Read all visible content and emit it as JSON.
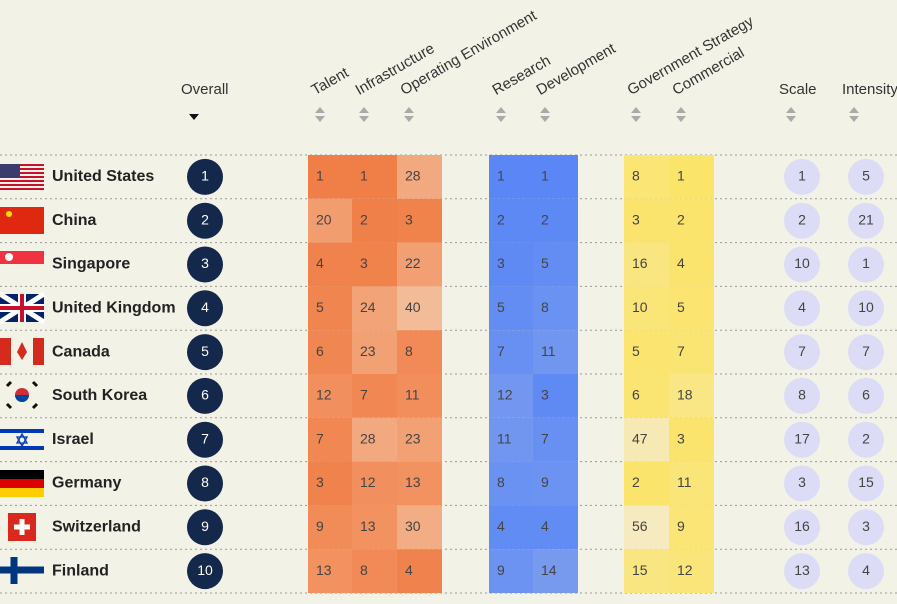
{
  "header": {
    "overall": "Overall",
    "talent": "Talent",
    "infrastructure": "Infrastructure",
    "operating_environment": "Operating Environment",
    "research": "Research",
    "development": "Development",
    "government_strategy": "Government Strategy",
    "commercial": "Commercial",
    "scale": "Scale",
    "intensity": "Intensity"
  },
  "rows": [
    {
      "country": "United States",
      "overall": 1,
      "talent": 1,
      "infrastructure": 1,
      "operating_environment": 28,
      "research": 1,
      "development": 1,
      "government_strategy": 8,
      "commercial": 1,
      "scale": 1,
      "intensity": 5
    },
    {
      "country": "China",
      "overall": 2,
      "talent": 20,
      "infrastructure": 2,
      "operating_environment": 3,
      "research": 2,
      "development": 2,
      "government_strategy": 3,
      "commercial": 2,
      "scale": 2,
      "intensity": 21
    },
    {
      "country": "Singapore",
      "overall": 3,
      "talent": 4,
      "infrastructure": 3,
      "operating_environment": 22,
      "research": 3,
      "development": 5,
      "government_strategy": 16,
      "commercial": 4,
      "scale": 10,
      "intensity": 1
    },
    {
      "country": "United Kingdom",
      "overall": 4,
      "talent": 5,
      "infrastructure": 24,
      "operating_environment": 40,
      "research": 5,
      "development": 8,
      "government_strategy": 10,
      "commercial": 5,
      "scale": 4,
      "intensity": 10
    },
    {
      "country": "Canada",
      "overall": 5,
      "talent": 6,
      "infrastructure": 23,
      "operating_environment": 8,
      "research": 7,
      "development": 11,
      "government_strategy": 5,
      "commercial": 7,
      "scale": 7,
      "intensity": 7
    },
    {
      "country": "South Korea",
      "overall": 6,
      "talent": 12,
      "infrastructure": 7,
      "operating_environment": 11,
      "research": 12,
      "development": 3,
      "government_strategy": 6,
      "commercial": 18,
      "scale": 8,
      "intensity": 6
    },
    {
      "country": "Israel",
      "overall": 7,
      "talent": 7,
      "infrastructure": 28,
      "operating_environment": 23,
      "research": 11,
      "development": 7,
      "government_strategy": 47,
      "commercial": 3,
      "scale": 17,
      "intensity": 2
    },
    {
      "country": "Germany",
      "overall": 8,
      "talent": 3,
      "infrastructure": 12,
      "operating_environment": 13,
      "research": 8,
      "development": 9,
      "government_strategy": 2,
      "commercial": 11,
      "scale": 3,
      "intensity": 15
    },
    {
      "country": "Switzerland",
      "overall": 9,
      "talent": 9,
      "infrastructure": 13,
      "operating_environment": 30,
      "research": 4,
      "development": 4,
      "government_strategy": 56,
      "commercial": 9,
      "scale": 16,
      "intensity": 3
    },
    {
      "country": "Finland",
      "overall": 10,
      "talent": 13,
      "infrastructure": 8,
      "operating_environment": 4,
      "research": 9,
      "development": 14,
      "government_strategy": 15,
      "commercial": 12,
      "scale": 13,
      "intensity": 4
    }
  ]
}
